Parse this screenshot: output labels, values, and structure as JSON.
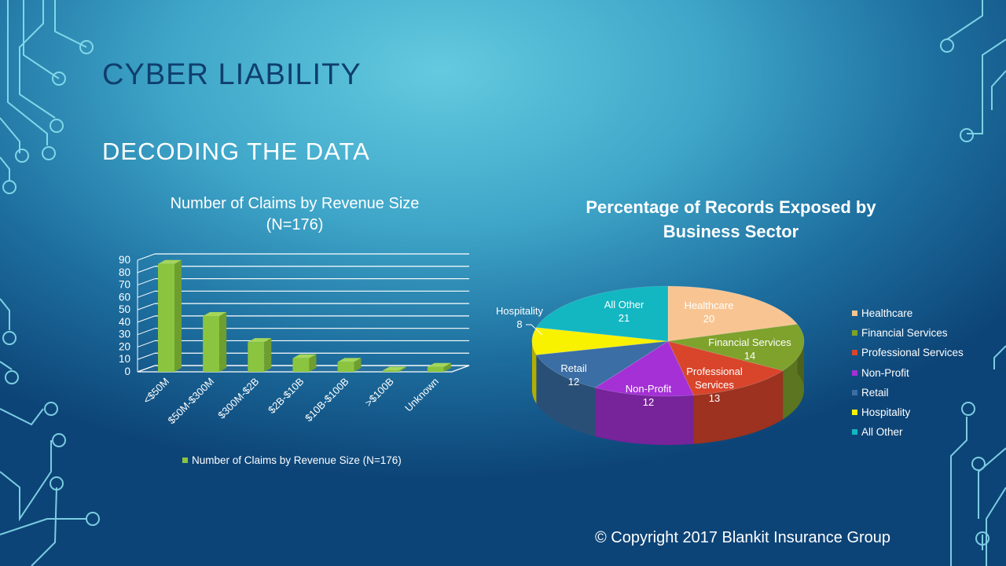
{
  "slide": {
    "title": "CYBER LIABILITY",
    "subtitle": "DECODING THE DATA",
    "copyright": "© Copyright 2017 Blankit Insurance Group"
  },
  "colors": {
    "bar_fill": "#8bc53f",
    "bar_side": "#6e9e2f",
    "title": "#0f3f6e",
    "text": "#ffffff"
  },
  "chart_data": [
    {
      "type": "bar",
      "title": "Number of Claims by Revenue Size (N=176)",
      "title_lines": [
        "Number of Claims by Revenue Size",
        "(N=176)"
      ],
      "categories": [
        "<$50M",
        "$50M-$300M",
        "$300M-$2B",
        "$2B-$10B",
        "$10B-$100B",
        ">$100B",
        "Unknown"
      ],
      "series": [
        {
          "name": "Number of Claims by Revenue Size (N=176)",
          "values": [
            87,
            45,
            24,
            11,
            8,
            1,
            4
          ]
        }
      ],
      "ylim": [
        0,
        90
      ],
      "yticks": [
        0,
        10,
        20,
        30,
        40,
        50,
        60,
        70,
        80,
        90
      ],
      "grid": true,
      "legend": "bottom"
    },
    {
      "type": "pie",
      "title": "Percentage of Records Exposed by Business Sector",
      "title_lines": [
        "Percentage of Records Exposed by",
        "Business Sector"
      ],
      "slices": [
        {
          "label": "Healthcare",
          "value": 20,
          "color": "#f8c592"
        },
        {
          "label": "Financial Services",
          "value": 14,
          "color": "#7ea22c"
        },
        {
          "label": "Professional Services",
          "value": 13,
          "color": "#d9452b"
        },
        {
          "label": "Non-Profit",
          "value": 12,
          "color": "#a530d6"
        },
        {
          "label": "Retail",
          "value": 12,
          "color": "#3b6ea4"
        },
        {
          "label": "Hospitality",
          "value": 8,
          "color": "#f8f200"
        },
        {
          "label": "All Other",
          "value": 21,
          "color": "#12b7c2"
        }
      ],
      "legend": "right"
    }
  ]
}
